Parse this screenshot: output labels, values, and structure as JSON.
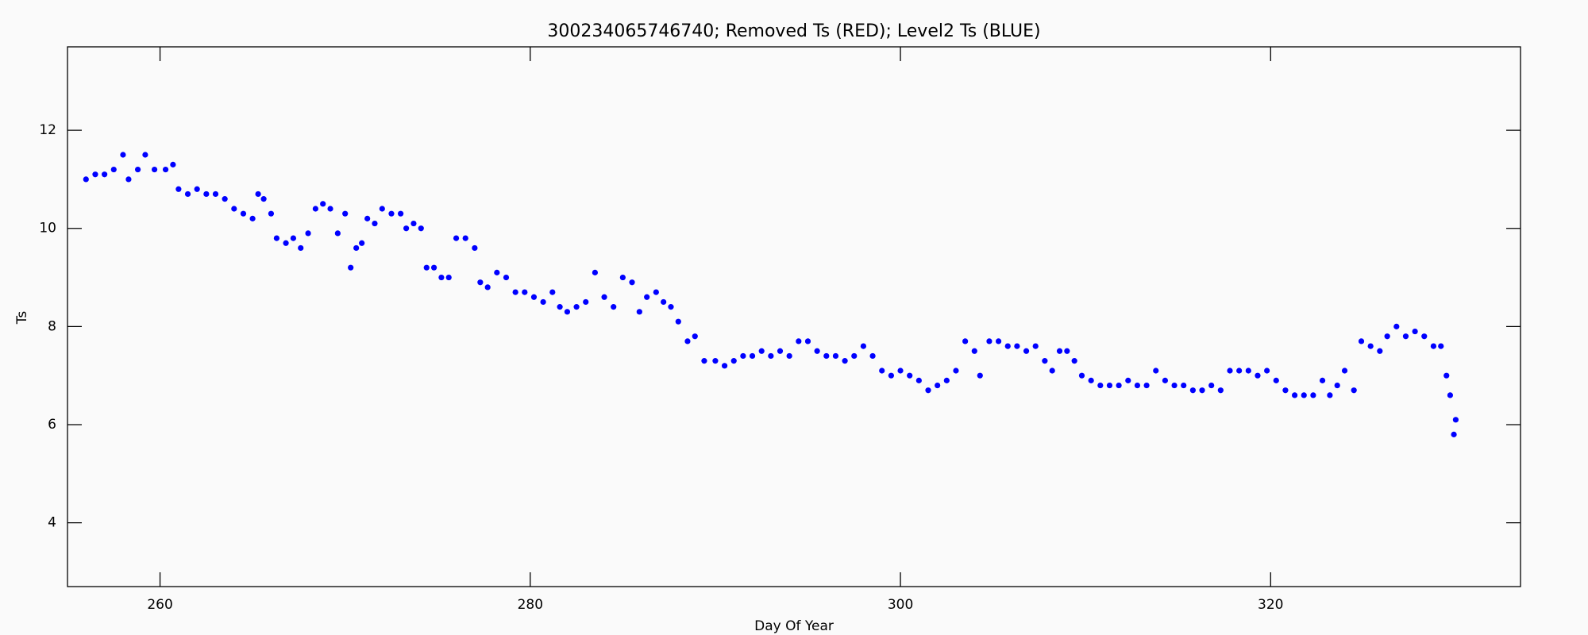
{
  "chart_data": {
    "type": "scatter",
    "title": "300234065746740; Removed Ts (RED); Level2 Ts (BLUE)",
    "xlabel": "Day Of Year",
    "ylabel": "Ts",
    "color": "#0000ff",
    "xlim": [
      255,
      333.5
    ],
    "ylim": [
      2.7,
      13.7
    ],
    "xticks": [
      260,
      280,
      300,
      320
    ],
    "yticks": [
      4,
      6,
      8,
      10,
      12
    ],
    "x": [
      256,
      256.5,
      257,
      257.5,
      258,
      258.3,
      258.8,
      259.2,
      259.7,
      260.3,
      260.7,
      261,
      261.5,
      262,
      262.5,
      263,
      263.5,
      264,
      264.5,
      265,
      265.3,
      265.6,
      266,
      266.3,
      266.8,
      267.2,
      267.6,
      268,
      268.4,
      268.8,
      269.2,
      269.6,
      270,
      270.3,
      270.6,
      270.9,
      271.2,
      271.6,
      272,
      272.5,
      273,
      273.3,
      273.7,
      274.1,
      274.4,
      274.8,
      275.2,
      275.6,
      276,
      276.5,
      277,
      277.3,
      277.7,
      278.2,
      278.7,
      279.2,
      279.7,
      280.2,
      280.7,
      281.2,
      281.6,
      282,
      282.5,
      283,
      283.5,
      284,
      284.5,
      285,
      285.5,
      285.9,
      286.3,
      286.8,
      287.2,
      287.6,
      288,
      288.5,
      288.9,
      289.4,
      290,
      290.5,
      291,
      291.5,
      292,
      292.5,
      293,
      293.5,
      294,
      294.5,
      295,
      295.5,
      296,
      296.5,
      297,
      297.5,
      298,
      298.5,
      299,
      299.5,
      300,
      300.5,
      301,
      301.5,
      302,
      302.5,
      303,
      303.5,
      304,
      304.3,
      304.8,
      305.3,
      305.8,
      306.3,
      306.8,
      307.3,
      307.8,
      308.2,
      308.6,
      309,
      309.4,
      309.8,
      310.3,
      310.8,
      311.3,
      311.8,
      312.3,
      312.8,
      313.3,
      313.8,
      314.3,
      314.8,
      315.3,
      315.8,
      316.3,
      316.8,
      317.3,
      317.8,
      318.3,
      318.8,
      319.3,
      319.8,
      320.3,
      320.8,
      321.3,
      321.8,
      322.3,
      322.8,
      323.2,
      323.6,
      324,
      324.5,
      324.9,
      325.4,
      325.9,
      326.3,
      326.8,
      327.3,
      327.8,
      328.3,
      328.8,
      329.2,
      329.5,
      329.7,
      329.9,
      330
    ],
    "values": [
      11.0,
      11.1,
      11.1,
      11.2,
      11.5,
      11.0,
      11.2,
      11.5,
      11.2,
      11.2,
      11.3,
      10.8,
      10.7,
      10.8,
      10.7,
      10.7,
      10.6,
      10.4,
      10.3,
      10.2,
      10.7,
      10.6,
      10.3,
      9.8,
      9.7,
      9.8,
      9.6,
      9.9,
      10.4,
      10.5,
      10.4,
      9.9,
      10.3,
      9.2,
      9.6,
      9.7,
      10.2,
      10.1,
      10.4,
      10.3,
      10.3,
      10.0,
      10.1,
      10.0,
      9.2,
      9.2,
      9.0,
      9.0,
      9.8,
      9.8,
      9.6,
      8.9,
      8.8,
      9.1,
      9.0,
      8.7,
      8.7,
      8.6,
      8.5,
      8.7,
      8.4,
      8.3,
      8.4,
      8.5,
      9.1,
      8.6,
      8.4,
      9.0,
      8.9,
      8.3,
      8.6,
      8.7,
      8.5,
      8.4,
      8.1,
      7.7,
      7.8,
      7.3,
      7.3,
      7.2,
      7.3,
      7.4,
      7.4,
      7.5,
      7.4,
      7.5,
      7.4,
      7.7,
      7.7,
      7.5,
      7.4,
      7.4,
      7.3,
      7.4,
      7.6,
      7.4,
      7.1,
      7.0,
      7.1,
      7.0,
      6.9,
      6.7,
      6.8,
      6.9,
      7.1,
      7.7,
      7.5,
      7.0,
      7.7,
      7.7,
      7.6,
      7.6,
      7.5,
      7.6,
      7.3,
      7.1,
      7.5,
      7.5,
      7.3,
      7.0,
      6.9,
      6.8,
      6.8,
      6.8,
      6.9,
      6.8,
      6.8,
      7.1,
      6.9,
      6.8,
      6.8,
      6.7,
      6.7,
      6.8,
      6.7,
      7.1,
      7.1,
      7.1,
      7.0,
      7.1,
      6.9,
      6.7,
      6.6,
      6.6,
      6.6,
      6.9,
      6.6,
      6.8,
      7.1,
      6.7,
      7.7,
      7.6,
      7.5,
      7.8,
      8.0,
      7.8,
      7.9,
      7.8,
      7.6,
      7.6,
      7.0,
      6.6,
      5.8,
      6.1
    ]
  }
}
